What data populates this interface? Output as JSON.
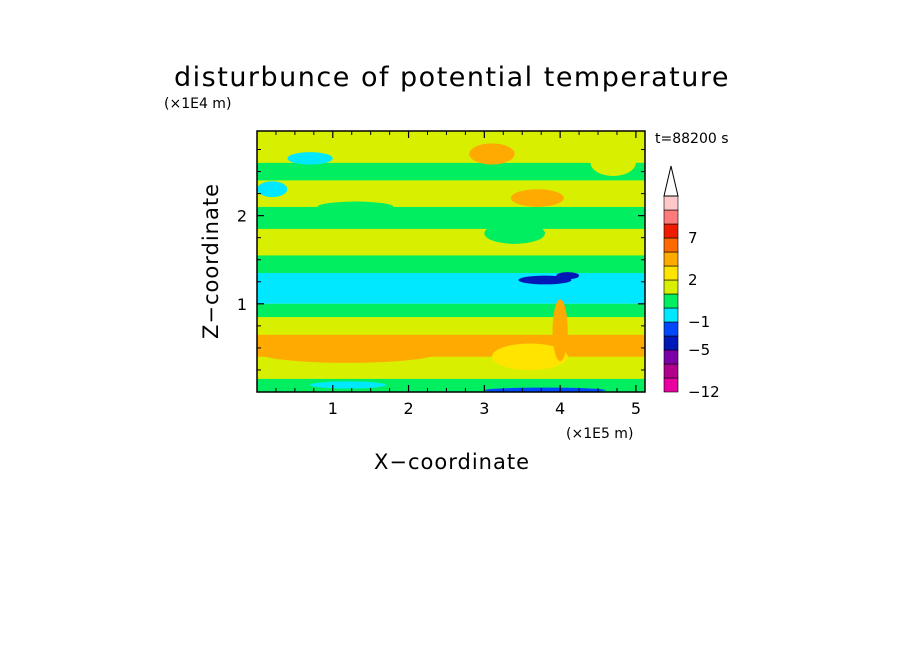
{
  "chart_data": {
    "type": "heatmap",
    "title": "disturbunce of potential temperature",
    "xlabel": "X−coordinate",
    "ylabel": "Z−coordinate",
    "x_unit": "(×1E5 m)",
    "y_unit": "(×1E4 m)",
    "time_label": "t=88200 s",
    "xlim": [
      0,
      5.12
    ],
    "ylim": [
      0,
      2.96
    ],
    "x_ticks": [
      "1",
      "2",
      "3",
      "4",
      "5"
    ],
    "x_tick_values": [
      1,
      2,
      3,
      4,
      5
    ],
    "y_ticks": [
      "1",
      "2"
    ],
    "y_tick_values": [
      1,
      2
    ],
    "colorbar": {
      "levels": [
        -12,
        -9,
        -7,
        -5,
        -3,
        -1,
        0,
        1,
        2,
        3,
        5,
        7,
        9,
        12
      ],
      "tick_labels": [
        "7",
        "2",
        "−1",
        "−5",
        "−12"
      ],
      "tick_values": [
        7,
        2,
        -1,
        -5,
        -12
      ],
      "colors": [
        "#e800a0",
        "#b0008c",
        "#7a00a8",
        "#0018b8",
        "#0048ff",
        "#00e8ff",
        "#00ee60",
        "#d8f000",
        "#ffe400",
        "#ffaa00",
        "#ff6a00",
        "#ee1c00",
        "#ff7a7a",
        "#ffc8c8"
      ],
      "extend": "max"
    },
    "bands": [
      {
        "z_min": 0.0,
        "z_max": 0.15,
        "value": 0.5
      },
      {
        "z_min": 0.15,
        "z_max": 0.4,
        "value": 1.5
      },
      {
        "z_min": 0.4,
        "z_max": 0.65,
        "value": 3.0
      },
      {
        "z_min": 0.65,
        "z_max": 0.85,
        "value": 1.5
      },
      {
        "z_min": 0.85,
        "z_max": 1.0,
        "value": 0.5
      },
      {
        "z_min": 1.0,
        "z_max": 1.35,
        "value": -0.5
      },
      {
        "z_min": 1.35,
        "z_max": 1.55,
        "value": 0.5
      },
      {
        "z_min": 1.55,
        "z_max": 1.85,
        "value": 1.5
      },
      {
        "z_min": 1.85,
        "z_max": 2.1,
        "value": 0.5
      },
      {
        "z_min": 2.1,
        "z_max": 2.4,
        "value": 1.5
      },
      {
        "z_min": 2.4,
        "z_max": 2.6,
        "value": 0.5
      },
      {
        "z_min": 2.6,
        "z_max": 2.96,
        "value": 1.5
      }
    ],
    "features": [
      {
        "x": 1.2,
        "z": 0.45,
        "rx": 1.2,
        "rz": 0.12,
        "value": 3.0
      },
      {
        "x": 0.2,
        "z": 2.3,
        "rx": 0.2,
        "rz": 0.09,
        "value": -0.5
      },
      {
        "x": 0.7,
        "z": 2.65,
        "rx": 0.3,
        "rz": 0.07,
        "value": -0.5
      },
      {
        "x": 1.3,
        "z": 2.1,
        "rx": 0.5,
        "rz": 0.06,
        "value": 0.5
      },
      {
        "x": 3.8,
        "z": 1.27,
        "rx": 0.35,
        "rz": 0.05,
        "value": -4.0
      },
      {
        "x": 4.1,
        "z": 1.32,
        "rx": 0.15,
        "rz": 0.04,
        "value": -4.0
      },
      {
        "x": 3.1,
        "z": 2.7,
        "rx": 0.3,
        "rz": 0.12,
        "value": 3.0
      },
      {
        "x": 3.7,
        "z": 2.2,
        "rx": 0.35,
        "rz": 0.1,
        "value": 3.0
      },
      {
        "x": 3.4,
        "z": 1.8,
        "rx": 0.4,
        "rz": 0.12,
        "value": 0.5
      },
      {
        "x": 4.7,
        "z": 2.6,
        "rx": 0.3,
        "rz": 0.15,
        "value": 1.5
      },
      {
        "x": 3.6,
        "z": 0.4,
        "rx": 0.5,
        "rz": 0.15,
        "value": 2.0
      },
      {
        "x": 4.0,
        "z": 0.7,
        "rx": 0.1,
        "rz": 0.35,
        "value": 3.0
      },
      {
        "x": 3.8,
        "z": 0.02,
        "rx": 0.8,
        "rz": 0.03,
        "value": -2.0
      },
      {
        "x": 1.2,
        "z": 0.08,
        "rx": 0.5,
        "rz": 0.04,
        "value": -0.5
      }
    ],
    "grid": false
  }
}
